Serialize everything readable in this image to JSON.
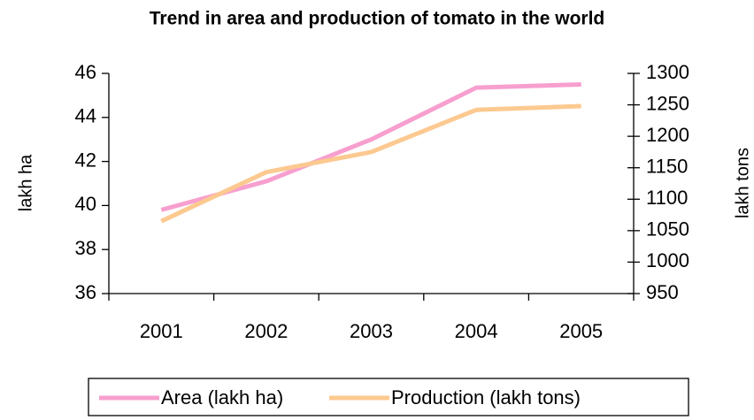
{
  "chart_data": {
    "type": "line",
    "title": "Trend in area and production of tomato in the world",
    "ylabel": "lakh ha",
    "y2label": "lakh tons",
    "categories": [
      "2001",
      "2002",
      "2003",
      "2004",
      "2005"
    ],
    "series": [
      {
        "name": "Area (lakh ha)",
        "color": "#f79fcf",
        "values": [
          39.8,
          41.1,
          43.0,
          45.35,
          45.5
        ]
      },
      {
        "name": "Production (lakh tons)",
        "color": "#fcc990",
        "axis": "y2",
        "values": [
          1065,
          1143,
          1175,
          1242,
          1248
        ]
      }
    ],
    "ylim": [
      36,
      46
    ],
    "yticks": [
      36,
      38,
      40,
      42,
      44,
      46
    ],
    "y2lim": [
      950,
      1300
    ],
    "y2ticks": [
      950,
      1000,
      1050,
      1100,
      1150,
      1200,
      1250,
      1300
    ],
    "grid": false,
    "legend": "bottom"
  }
}
